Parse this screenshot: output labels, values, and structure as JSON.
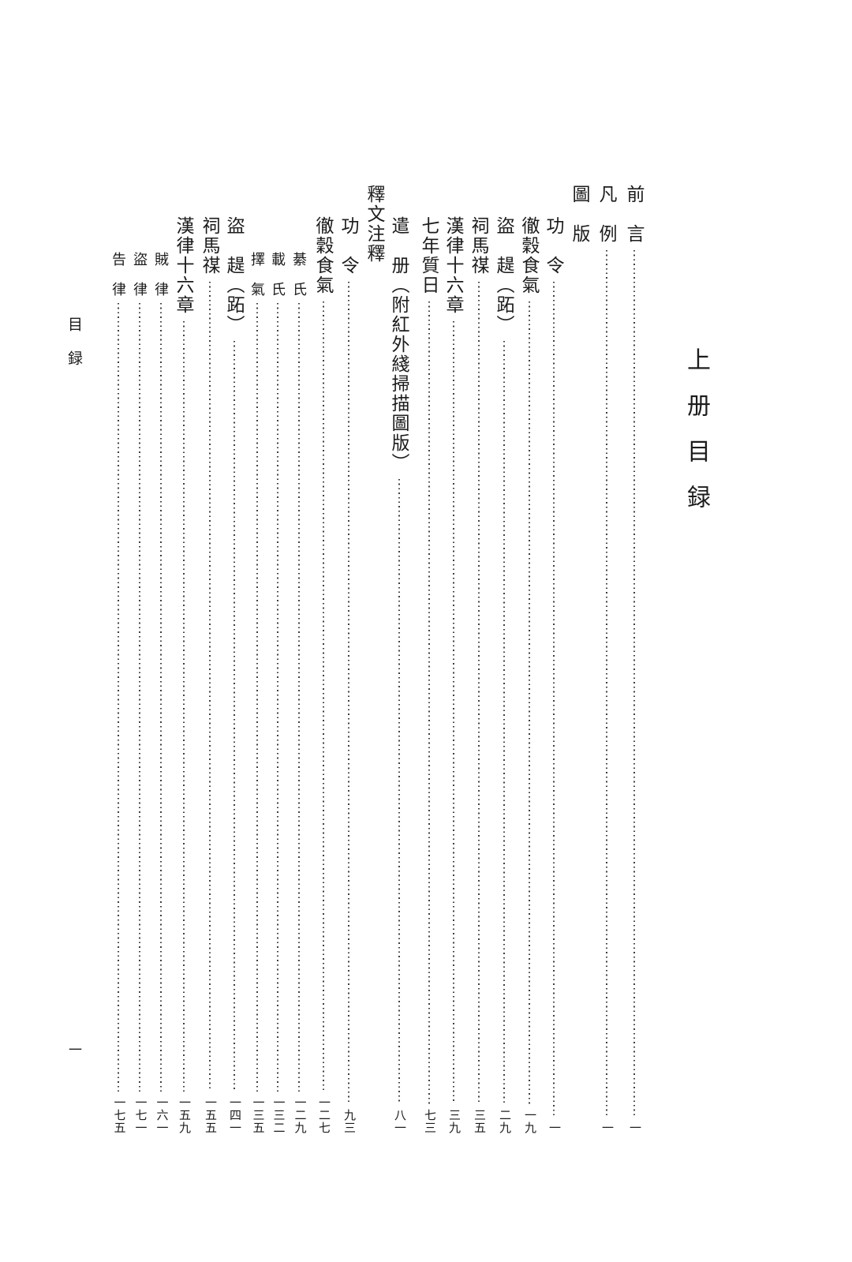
{
  "colors": {
    "ink": "#1c1c1c",
    "background": "#ffffff",
    "leader_dots": "#3f3f3f"
  },
  "book": {
    "volume_title": "上册目録"
  },
  "margin": {
    "label": "目録",
    "folio": "一"
  },
  "toc": {
    "entries": [
      {
        "title": "前　言",
        "page": "一",
        "level": "main"
      },
      {
        "title": "凡　例",
        "page": "一",
        "level": "main"
      },
      {
        "title": "圖　版",
        "page": "",
        "level": "section"
      },
      {
        "title": "功　令",
        "page": "一",
        "level": "entry"
      },
      {
        "title": "徹穀食氣",
        "page": "一九",
        "level": "entry"
      },
      {
        "title": "盜　趧（跖）",
        "page": "二九",
        "level": "entry"
      },
      {
        "title": "祠馬禖",
        "page": "三五",
        "level": "entry"
      },
      {
        "title": "漢律十六章",
        "page": "三九",
        "level": "entry"
      },
      {
        "title": "七年質日",
        "page": "七三",
        "level": "entry"
      },
      {
        "title": "遣　册（附紅外綫掃描圖版）",
        "page": "八一",
        "level": "entry"
      },
      {
        "title": "釋文注釋",
        "page": "",
        "level": "section"
      },
      {
        "title": "功　令",
        "page": "九三",
        "level": "entry"
      },
      {
        "title": "徹穀食氣",
        "page": "一二七",
        "level": "entry"
      },
      {
        "title": "綦　氏",
        "page": "一二九",
        "level": "sub"
      },
      {
        "title": "載　氏",
        "page": "一三二",
        "level": "sub"
      },
      {
        "title": "擇　氣",
        "page": "一三五",
        "level": "sub"
      },
      {
        "title": "盜　趧（跖）",
        "page": "一四一",
        "level": "entry"
      },
      {
        "title": "祠馬禖",
        "page": "一五五",
        "level": "entry"
      },
      {
        "title": "漢律十六章",
        "page": "一五九",
        "level": "entry"
      },
      {
        "title": "賊　律",
        "page": "一六一",
        "level": "sub"
      },
      {
        "title": "盜　律",
        "page": "一七一",
        "level": "sub"
      },
      {
        "title": "告　律",
        "page": "一七五",
        "level": "sub"
      }
    ]
  }
}
